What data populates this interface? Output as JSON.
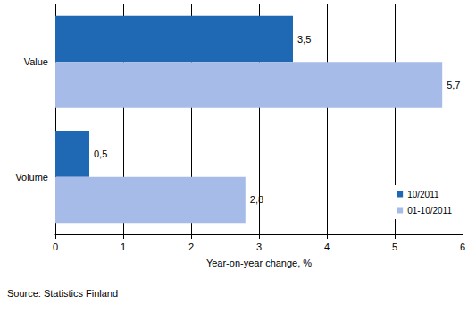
{
  "chart_data": {
    "type": "bar",
    "orientation": "horizontal",
    "categories": [
      "Value",
      "Volume"
    ],
    "series": [
      {
        "name": "10/2011",
        "color": "#1f69b4",
        "values": [
          3.5,
          0.5
        ],
        "value_labels": [
          "3,5",
          "0,5"
        ]
      },
      {
        "name": "01-10/2011",
        "color": "#a6bbe8",
        "values": [
          5.7,
          2.8
        ],
        "value_labels": [
          "5,7",
          "2,8"
        ]
      }
    ],
    "xlabel": "Year-on-year change, %",
    "xlim": [
      0,
      6
    ],
    "xticks": [
      0,
      1,
      2,
      3,
      4,
      5,
      6
    ],
    "grid": true,
    "legend": "lower right",
    "data_labels": true,
    "source": "Source: Statistics Finland"
  }
}
